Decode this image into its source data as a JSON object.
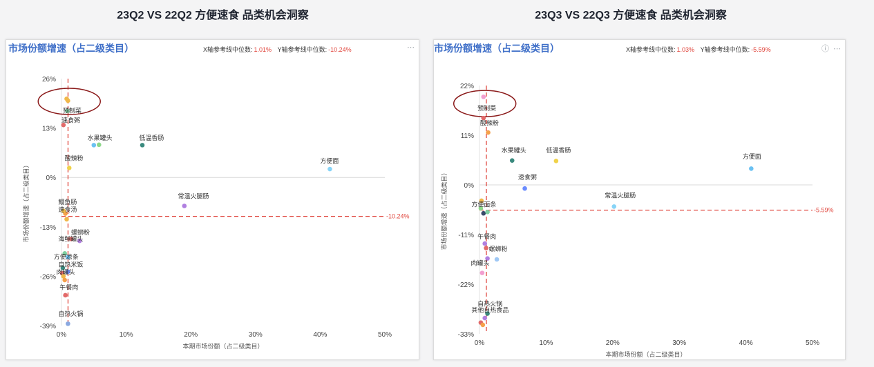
{
  "charts_meta": [
    {
      "page_title": "23Q2 VS 22Q2 方便速食 品类机会洞察",
      "card_title": "市场份额增速（占二级类目）",
      "x_median_label": "X轴参考线中位数:",
      "x_median_value": "1.01%",
      "y_median_label": "Y轴参考线中位数:",
      "y_median_value": "-10.24%",
      "menu_icon": "more-icon"
    },
    {
      "page_title": "23Q3 VS 22Q3 方便速食 品类机会洞察",
      "card_title": "市场份额增速（占二级类目）",
      "x_median_label": "X轴参考线中位数:",
      "x_median_value": "1.03%",
      "y_median_label": "Y轴参考线中位数:",
      "y_median_value": "-5.59%",
      "info_icon": "info-icon",
      "menu_icon": "more-icon"
    }
  ],
  "colors": {
    "median_line": "#e0443b",
    "highlight_ellipse": "#8b1a1a",
    "title": "#3f6fc8"
  },
  "chart_data": [
    {
      "type": "scatter",
      "title": "市场份额增速（占二级类目）",
      "xlabel": "本期市场份额（占二级类目）",
      "ylabel": "市场份额增速（占二级类目）",
      "xlim": [
        0,
        50
      ],
      "ylim": [
        -39,
        26
      ],
      "x_ticks": [
        "0%",
        "10%",
        "20%",
        "30%",
        "40%",
        "50%"
      ],
      "y_ticks": [
        "26%",
        "13%",
        "0%",
        "-13%",
        "-26%",
        "-39%"
      ],
      "x_tick_values": [
        0,
        10,
        20,
        30,
        40,
        50
      ],
      "y_tick_values": [
        26,
        13,
        0,
        -13,
        -26,
        -39
      ],
      "x_median": 1.01,
      "y_median": -10.24,
      "y_median_label": "-10.24%",
      "highlight": {
        "x": 1.2,
        "y": 20
      },
      "points": [
        {
          "x": 0.8,
          "y": 20.7,
          "color": "#f0b84a"
        },
        {
          "x": 1.0,
          "y": 20.2,
          "color": "#f0b84a"
        },
        {
          "x": 0.9,
          "y": 17.5,
          "color": "#7ecfa0"
        },
        {
          "x": 0.3,
          "y": 13.8,
          "color": "#e26a6a"
        },
        {
          "x": 5.0,
          "y": 8.5,
          "color": "#6bc1f2"
        },
        {
          "x": 5.8,
          "y": 8.6,
          "color": "#8dd88a"
        },
        {
          "x": 12.5,
          "y": 8.5,
          "color": "#3a8a7e"
        },
        {
          "x": 1.2,
          "y": 2.5,
          "color": "#f0d24a"
        },
        {
          "x": 41.5,
          "y": 2.2,
          "color": "#88d4f7"
        },
        {
          "x": 19.0,
          "y": -7.5,
          "color": "#b07fe0"
        },
        {
          "x": 0.6,
          "y": -9.5,
          "color": "#f5a04a"
        },
        {
          "x": 0.8,
          "y": -11.0,
          "color": "#f0b84a"
        },
        {
          "x": 0.3,
          "y": -8.8,
          "color": "#f5c04a"
        },
        {
          "x": 2.8,
          "y": -16.7,
          "color": "#b07fe0"
        },
        {
          "x": 1.5,
          "y": -16.2,
          "color": "#e26a6a"
        },
        {
          "x": 0.5,
          "y": -20.0,
          "color": "#7ecfa0"
        },
        {
          "x": 1.0,
          "y": -21.0,
          "color": "#6bc1f2"
        },
        {
          "x": 0.2,
          "y": -23.8,
          "color": "#3a8a7e"
        },
        {
          "x": 1.0,
          "y": -24.8,
          "color": "#6b8cff"
        },
        {
          "x": 0.1,
          "y": -25.2,
          "color": "#e26a6a"
        },
        {
          "x": 0.3,
          "y": -26.0,
          "color": "#f0b84a"
        },
        {
          "x": 0.5,
          "y": -27.0,
          "color": "#f5a04a"
        },
        {
          "x": 0.6,
          "y": -31.0,
          "color": "#e26a6a"
        },
        {
          "x": 1.0,
          "y": -38.5,
          "color": "#8aa8e0"
        }
      ],
      "labels": [
        {
          "text": "预制菜",
          "x": 0.2,
          "y": 17.0
        },
        {
          "text": "速食粥",
          "x": 0.0,
          "y": 14.5
        },
        {
          "text": "水果罐头",
          "x": 4.0,
          "y": 9.8
        },
        {
          "text": "低温香肠",
          "x": 12.0,
          "y": 9.8
        },
        {
          "text": "酸辣粉",
          "x": 0.5,
          "y": 4.5
        },
        {
          "text": "方便面",
          "x": 40.0,
          "y": 3.8
        },
        {
          "text": "常温火腿肠",
          "x": 18.0,
          "y": -5.5
        },
        {
          "text": "鳗鱼肠",
          "x": -0.5,
          "y": -7.0
        },
        {
          "text": "速食汤",
          "x": -0.5,
          "y": -9.0
        },
        {
          "text": "螺蛳粉",
          "x": 1.5,
          "y": -15.0
        },
        {
          "text": "海鲜罐头",
          "x": -0.5,
          "y": -16.8
        },
        {
          "text": "方便凉条",
          "x": -1.2,
          "y": -21.5
        },
        {
          "text": "自热米饭",
          "x": -0.5,
          "y": -23.5
        },
        {
          "text": "肉罐头",
          "x": -0.8,
          "y": -25.5
        },
        {
          "text": "午餐肉",
          "x": -0.3,
          "y": -29.5
        },
        {
          "text": "自热火锅",
          "x": -0.5,
          "y": -36.5
        }
      ]
    },
    {
      "type": "scatter",
      "title": "市场份额增速（占二级类目）",
      "xlabel": "本期市场份额（占二级类目）",
      "ylabel": "市场份额增速（占二级类目）",
      "xlim": [
        0,
        50
      ],
      "ylim": [
        -33,
        22
      ],
      "x_ticks": [
        "0%",
        "10%",
        "20%",
        "30%",
        "40%",
        "50%"
      ],
      "y_ticks": [
        "22%",
        "11%",
        "0%",
        "-11%",
        "-22%",
        "-33%"
      ],
      "x_tick_values": [
        0,
        10,
        20,
        30,
        40,
        50
      ],
      "y_tick_values": [
        22,
        11,
        0,
        -11,
        -22,
        -33
      ],
      "x_median": 1.03,
      "y_median": -5.59,
      "y_median_label": "-5.59%",
      "highlight": {
        "x": 0.8,
        "y": 18
      },
      "points": [
        {
          "x": 0.6,
          "y": 19.5,
          "color": "#f29ed0"
        },
        {
          "x": 0.6,
          "y": 14.8,
          "color": "#e26a6a"
        },
        {
          "x": 1.3,
          "y": 11.6,
          "color": "#f5a04a"
        },
        {
          "x": 4.9,
          "y": 5.4,
          "color": "#3a8a7e"
        },
        {
          "x": 11.5,
          "y": 5.3,
          "color": "#f0d24a"
        },
        {
          "x": 40.8,
          "y": 3.6,
          "color": "#6bc1f2"
        },
        {
          "x": 6.8,
          "y": -0.8,
          "color": "#6b8cff"
        },
        {
          "x": 0.3,
          "y": -3.5,
          "color": "#f0b84a"
        },
        {
          "x": 20.2,
          "y": -4.8,
          "color": "#88d4f7"
        },
        {
          "x": 0.2,
          "y": -5.2,
          "color": "#8dd88a"
        },
        {
          "x": 0.6,
          "y": -6.3,
          "color": "#3a4a6a"
        },
        {
          "x": 1.2,
          "y": -6.0,
          "color": "#7ecfa0"
        },
        {
          "x": 0.8,
          "y": -13.0,
          "color": "#b07fe0"
        },
        {
          "x": 1.0,
          "y": -14.0,
          "color": "#e26a6a"
        },
        {
          "x": 1.2,
          "y": -16.3,
          "color": "#b07fe0"
        },
        {
          "x": 2.6,
          "y": -16.5,
          "color": "#9fc8f5"
        },
        {
          "x": 0.4,
          "y": -19.5,
          "color": "#f29ed0"
        },
        {
          "x": 1.2,
          "y": -28.5,
          "color": "#3a8a7e"
        },
        {
          "x": 0.2,
          "y": -30.5,
          "color": "#e26a6a"
        },
        {
          "x": 0.5,
          "y": -31.0,
          "color": "#f5a04a"
        },
        {
          "x": 0.8,
          "y": -29.5,
          "color": "#b07fe0"
        }
      ],
      "labels": [
        {
          "text": "预制菜",
          "x": -0.3,
          "y": 16.5
        },
        {
          "text": "酸辣粉",
          "x": 0.1,
          "y": 13.2
        },
        {
          "text": "水果罐头",
          "x": 3.3,
          "y": 7.2
        },
        {
          "text": "低温香肠",
          "x": 10.0,
          "y": 7.2
        },
        {
          "text": "方便面",
          "x": 39.5,
          "y": 5.8
        },
        {
          "text": "速食粥",
          "x": 5.8,
          "y": 1.2
        },
        {
          "text": "常温火腿肠",
          "x": 18.8,
          "y": -2.8
        },
        {
          "text": "方便面条",
          "x": -1.2,
          "y": -4.8
        },
        {
          "text": "午餐肉",
          "x": -0.3,
          "y": -11.9
        },
        {
          "text": "螺蛳粉",
          "x": 1.4,
          "y": -14.7
        },
        {
          "text": "肉罐头",
          "x": -1.3,
          "y": -17.8
        },
        {
          "text": "自热火锅",
          "x": -0.3,
          "y": -26.8
        },
        {
          "text": "其他自热食品",
          "x": -1.2,
          "y": -28.2
        }
      ]
    }
  ]
}
